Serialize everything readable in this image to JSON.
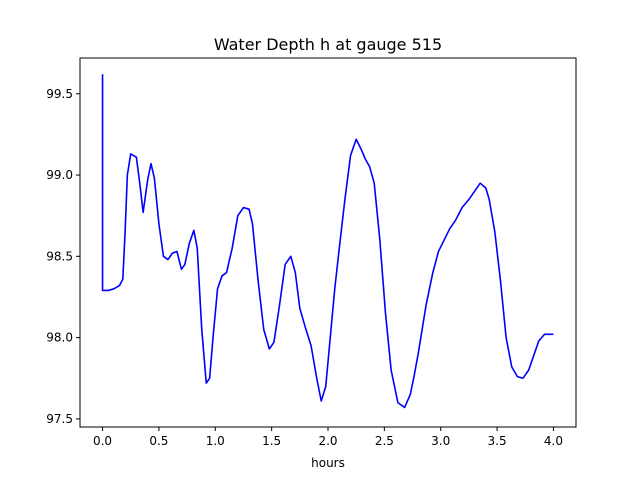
{
  "chart_data": {
    "type": "line",
    "title": "Water Depth h at gauge 515",
    "xlabel": "hours",
    "ylabel": "",
    "xlim": [
      -0.2,
      4.2
    ],
    "ylim": [
      97.45,
      99.72
    ],
    "grid": false,
    "x_ticks": [
      {
        "value": 0.0,
        "label": "0.0"
      },
      {
        "value": 0.5,
        "label": "0.5"
      },
      {
        "value": 1.0,
        "label": "1.0"
      },
      {
        "value": 1.5,
        "label": "1.5"
      },
      {
        "value": 2.0,
        "label": "2.0"
      },
      {
        "value": 2.5,
        "label": "2.5"
      },
      {
        "value": 3.0,
        "label": "3.0"
      },
      {
        "value": 3.5,
        "label": "3.5"
      },
      {
        "value": 4.0,
        "label": "4.0"
      }
    ],
    "y_ticks": [
      {
        "value": 97.5,
        "label": "97.5"
      },
      {
        "value": 98.0,
        "label": "98.0"
      },
      {
        "value": 98.5,
        "label": "98.5"
      },
      {
        "value": 99.0,
        "label": "99.0"
      },
      {
        "value": 99.5,
        "label": "99.5"
      }
    ],
    "series": [
      {
        "color": "#0000ff",
        "x": [
          0.0,
          0.0,
          0.05,
          0.1,
          0.15,
          0.18,
          0.2,
          0.22,
          0.25,
          0.3,
          0.33,
          0.36,
          0.4,
          0.43,
          0.46,
          0.5,
          0.54,
          0.58,
          0.62,
          0.66,
          0.7,
          0.73,
          0.77,
          0.81,
          0.84,
          0.88,
          0.92,
          0.95,
          0.98,
          1.02,
          1.06,
          1.1,
          1.15,
          1.2,
          1.25,
          1.3,
          1.33,
          1.38,
          1.43,
          1.48,
          1.52,
          1.57,
          1.62,
          1.67,
          1.71,
          1.75,
          1.8,
          1.85,
          1.9,
          1.94,
          1.98,
          2.02,
          2.06,
          2.1,
          2.15,
          2.2,
          2.25,
          2.3,
          2.33,
          2.37,
          2.41,
          2.46,
          2.51,
          2.56,
          2.62,
          2.68,
          2.73,
          2.76,
          2.8,
          2.87,
          2.93,
          2.98,
          3.03,
          3.08,
          3.13,
          3.19,
          3.25,
          3.3,
          3.35,
          3.4,
          3.43,
          3.48,
          3.53,
          3.58,
          3.63,
          3.68,
          3.73,
          3.78,
          3.83,
          3.87,
          3.92,
          3.96,
          4.0
        ],
        "y": [
          99.62,
          98.29,
          98.29,
          98.3,
          98.32,
          98.36,
          98.65,
          99.0,
          99.13,
          99.11,
          98.95,
          98.77,
          98.97,
          99.07,
          98.98,
          98.7,
          98.5,
          98.48,
          98.52,
          98.53,
          98.42,
          98.45,
          98.58,
          98.66,
          98.55,
          98.05,
          97.72,
          97.75,
          98.0,
          98.3,
          98.38,
          98.4,
          98.55,
          98.75,
          98.8,
          98.79,
          98.7,
          98.35,
          98.05,
          97.93,
          97.97,
          98.2,
          98.45,
          98.5,
          98.4,
          98.18,
          98.06,
          97.95,
          97.75,
          97.61,
          97.7,
          98.0,
          98.3,
          98.55,
          98.85,
          99.12,
          99.22,
          99.15,
          99.1,
          99.05,
          98.95,
          98.6,
          98.15,
          97.8,
          97.6,
          97.57,
          97.65,
          97.75,
          97.9,
          98.2,
          98.4,
          98.53,
          98.6,
          98.67,
          98.72,
          98.8,
          98.85,
          98.9,
          98.95,
          98.92,
          98.85,
          98.65,
          98.35,
          98.0,
          97.82,
          97.76,
          97.75,
          97.8,
          97.9,
          97.98,
          98.02,
          98.02,
          98.02
        ]
      }
    ]
  }
}
